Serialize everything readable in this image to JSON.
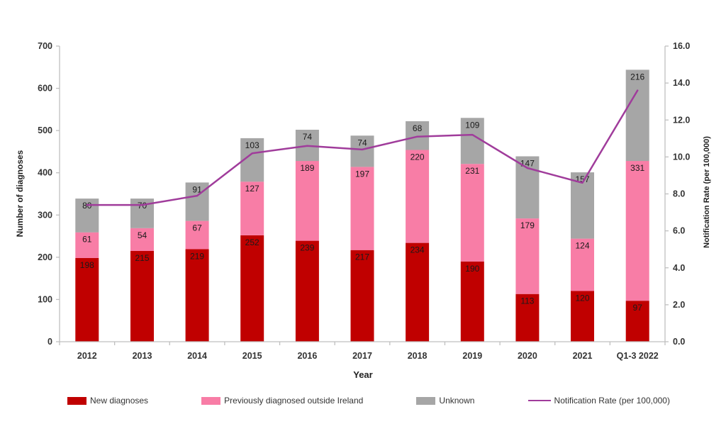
{
  "figure_background": "#ffffff",
  "chart_data": {
    "type": "bar",
    "subtype": "stacked-bar-with-line-overlay",
    "title": "",
    "categories": [
      "2012",
      "2013",
      "2014",
      "2015",
      "2016",
      "2017",
      "2018",
      "2019",
      "2020",
      "2021",
      "Q1-3 2022"
    ],
    "series": [
      {
        "name": "New diagnoses",
        "type": "bar",
        "color": "#C00000",
        "values": [
          198,
          215,
          219,
          252,
          239,
          217,
          234,
          190,
          113,
          120,
          97
        ]
      },
      {
        "name": "Previously diagnosed outside Ireland",
        "type": "bar",
        "color": "#F87DA6",
        "values": [
          61,
          54,
          67,
          127,
          189,
          197,
          220,
          231,
          179,
          124,
          331
        ]
      },
      {
        "name": "Unknown",
        "type": "bar",
        "color": "#A6A6A6",
        "values": [
          80,
          70,
          91,
          103,
          74,
          74,
          68,
          109,
          147,
          157,
          216
        ]
      },
      {
        "name": "Notification Rate (per 100,000)",
        "type": "line",
        "axis": "right",
        "color": "#A03C9B",
        "values": [
          7.4,
          7.4,
          7.9,
          10.2,
          10.6,
          10.4,
          11.1,
          11.2,
          9.4,
          8.6,
          13.6
        ]
      }
    ],
    "xlabel": "Year",
    "ylabel_left": "Number of diagnoses",
    "ylabel_right": "Notification Rate (per 100,000)",
    "ylim_left": [
      0,
      700
    ],
    "ytick_left_step": 100,
    "ylim_right": [
      0,
      16
    ],
    "ytick_right_step": 2,
    "grid": false,
    "bar_stacked": true,
    "data_labels": true,
    "legend_position": "bottom",
    "data_label_color": "#1a1a1a",
    "axis_line_color": "#BFBFBF",
    "tick_label_color": "#333333"
  }
}
